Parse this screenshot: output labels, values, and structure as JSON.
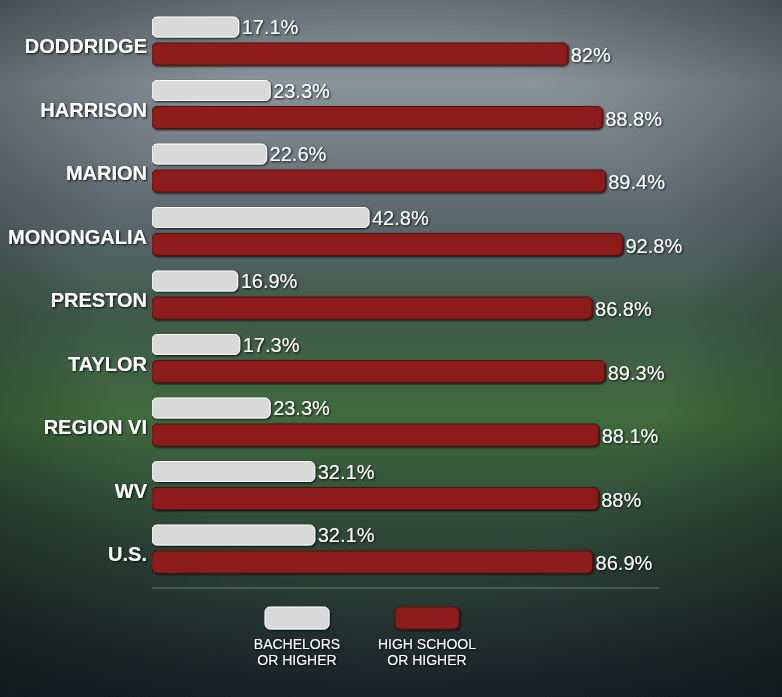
{
  "chart_data": {
    "type": "bar",
    "orientation": "horizontal",
    "categories": [
      "DODDRIDGE",
      "HARRISON",
      "MARION",
      "MONONGALIA",
      "PRESTON",
      "TAYLOR",
      "REGION VI",
      "WV",
      "U.S."
    ],
    "series": [
      {
        "name": "BACHELORS OR HIGHER",
        "color": "#d9d9d9",
        "values": [
          17.1,
          23.3,
          22.6,
          42.8,
          16.9,
          17.3,
          23.3,
          32.1,
          32.1
        ],
        "value_labels": [
          "17.1%",
          "23.3%",
          "22.6%",
          "42.8%",
          "16.9%",
          "17.3%",
          "23.3%",
          "32.1%",
          "32.1%"
        ]
      },
      {
        "name": "HIGH SCHOOL OR HIGHER",
        "color": "#8c1b1b",
        "values": [
          82,
          88.8,
          89.4,
          92.8,
          86.8,
          89.3,
          88.1,
          88,
          86.9
        ],
        "value_labels": [
          "82%",
          "88.8%",
          "89.4%",
          "92.8%",
          "86.8%",
          "89.3%",
          "88.1%",
          "88%",
          "86.9%"
        ]
      }
    ],
    "xlim": [
      0,
      100
    ],
    "data_labels": true,
    "tick_labels": "y",
    "legend": "bottom",
    "grid": false
  }
}
